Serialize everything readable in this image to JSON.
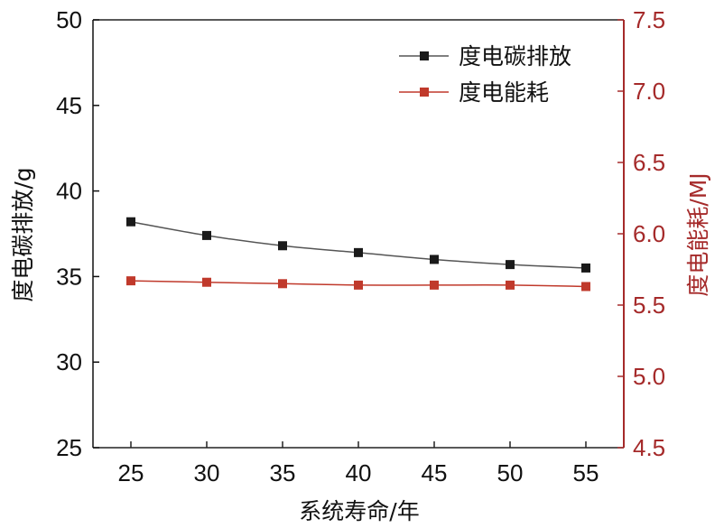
{
  "chart_data": {
    "type": "line",
    "x": [
      25,
      30,
      35,
      40,
      45,
      50,
      55
    ],
    "xlabel": "系统寿命/年",
    "ylabel_left": "度电碳排放/g",
    "ylabel_right": "度电能耗/MJ",
    "xlim": [
      22.5,
      57.5
    ],
    "ylim_left": [
      25,
      50
    ],
    "ylim_right": [
      4.5,
      7.5
    ],
    "xticks": [
      "25",
      "30",
      "35",
      "40",
      "45",
      "50",
      "55"
    ],
    "yticks_left": [
      "25",
      "30",
      "35",
      "40",
      "45",
      "50"
    ],
    "yticks_right": [
      "4.5",
      "5.0",
      "5.5",
      "6.0",
      "6.5",
      "7.0",
      "7.5"
    ],
    "legend_position": "top-right",
    "grid": false,
    "series": [
      {
        "name": "度电碳排放",
        "axis": "left",
        "color": "#1a1a1a",
        "line_color": "#555555",
        "marker": "square",
        "values": [
          38.2,
          37.4,
          36.8,
          36.4,
          36.0,
          35.7,
          35.5
        ]
      },
      {
        "name": "度电能耗",
        "axis": "right",
        "color": "#c0392b",
        "line_color": "#c0392b",
        "marker": "square",
        "values": [
          5.67,
          5.66,
          5.65,
          5.64,
          5.64,
          5.64,
          5.63
        ]
      }
    ],
    "colors": {
      "left_axis": "#111111",
      "right_axis": "#a52a2a"
    }
  }
}
